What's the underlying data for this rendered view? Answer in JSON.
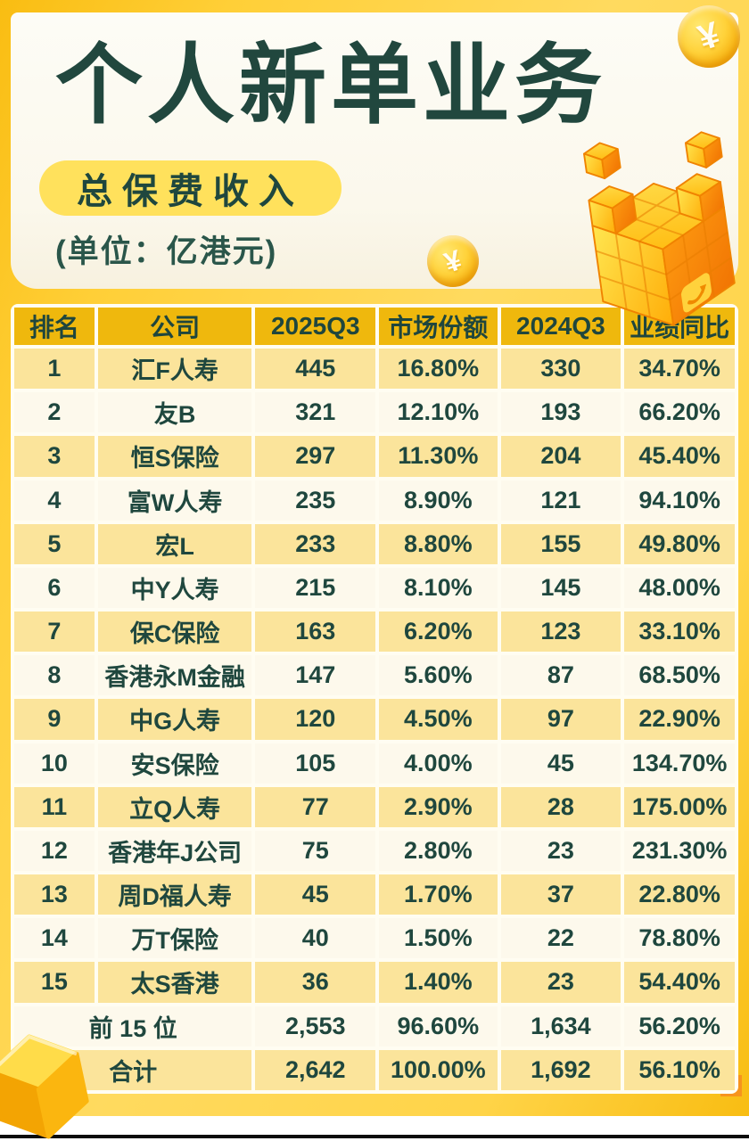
{
  "header": {
    "title": "个人新单业务",
    "badge": "总保费收入",
    "unit": "(单位：亿港元)"
  },
  "decor": {
    "coin_symbol": "¥"
  },
  "colors": {
    "ink": "#1F473E",
    "frame_gold": "#F9BE14",
    "frame_light": "#FFD95C",
    "header_cell_gold": "#EFB80D",
    "row_yellow": "#FBE49B",
    "row_cream": "#FDF9EC",
    "badge_yellow": "#FFE15C",
    "card_white": "#FFFDF2",
    "decor_orange": "#FF8E0D"
  },
  "table": {
    "columns": [
      "排名",
      "公司",
      "2025Q3",
      "市场份额",
      "2024Q3",
      "业绩同比"
    ],
    "rows": [
      [
        "1",
        "汇F人寿",
        "445",
        "16.80%",
        "330",
        "34.70%"
      ],
      [
        "2",
        "友B",
        "321",
        "12.10%",
        "193",
        "66.20%"
      ],
      [
        "3",
        "恒S保险",
        "297",
        "11.30%",
        "204",
        "45.40%"
      ],
      [
        "4",
        "富W人寿",
        "235",
        "8.90%",
        "121",
        "94.10%"
      ],
      [
        "5",
        "宏L",
        "233",
        "8.80%",
        "155",
        "49.80%"
      ],
      [
        "6",
        "中Y人寿",
        "215",
        "8.10%",
        "145",
        "48.00%"
      ],
      [
        "7",
        "保C保险",
        "163",
        "6.20%",
        "123",
        "33.10%"
      ],
      [
        "8",
        "香港永M金融",
        "147",
        "5.60%",
        "87",
        "68.50%"
      ],
      [
        "9",
        "中G人寿",
        "120",
        "4.50%",
        "97",
        "22.90%"
      ],
      [
        "10",
        "安S保险",
        "105",
        "4.00%",
        "45",
        "134.70%"
      ],
      [
        "11",
        "立Q人寿",
        "77",
        "2.90%",
        "28",
        "175.00%"
      ],
      [
        "12",
        "香港年J公司",
        "75",
        "2.80%",
        "23",
        "231.30%"
      ],
      [
        "13",
        "周D福人寿",
        "45",
        "1.70%",
        "37",
        "22.80%"
      ],
      [
        "14",
        "万T保险",
        "40",
        "1.50%",
        "22",
        "78.80%"
      ],
      [
        "15",
        "太S香港",
        "36",
        "1.40%",
        "23",
        "54.40%"
      ]
    ],
    "summary_rows": [
      {
        "label": "前 15 位",
        "values": [
          "2,553",
          "96.60%",
          "1,634",
          "56.20%"
        ]
      },
      {
        "label": "合计",
        "values": [
          "2,642",
          "100.00%",
          "1,692",
          "56.10%"
        ]
      }
    ]
  },
  "chart_data": {
    "type": "table",
    "title": "个人新单业务 — 总保费收入",
    "unit": "亿港元",
    "columns": [
      "排名",
      "公司",
      "2025Q3",
      "市场份额(%)",
      "2024Q3",
      "业绩同比(%)"
    ],
    "rows": [
      [
        1,
        "汇F人寿",
        445,
        16.8,
        330,
        34.7
      ],
      [
        2,
        "友B",
        321,
        12.1,
        193,
        66.2
      ],
      [
        3,
        "恒S保险",
        297,
        11.3,
        204,
        45.4
      ],
      [
        4,
        "富W人寿",
        235,
        8.9,
        121,
        94.1
      ],
      [
        5,
        "宏L",
        233,
        8.8,
        155,
        49.8
      ],
      [
        6,
        "中Y人寿",
        215,
        8.1,
        145,
        48.0
      ],
      [
        7,
        "保C保险",
        163,
        6.2,
        123,
        33.1
      ],
      [
        8,
        "香港永M金融",
        147,
        5.6,
        87,
        68.5
      ],
      [
        9,
        "中G人寿",
        120,
        4.5,
        97,
        22.9
      ],
      [
        10,
        "安S保险",
        105,
        4.0,
        45,
        134.7
      ],
      [
        11,
        "立Q人寿",
        77,
        2.9,
        28,
        175.0
      ],
      [
        12,
        "香港年J公司",
        75,
        2.8,
        23,
        231.3
      ],
      [
        13,
        "周D福人寿",
        45,
        1.7,
        37,
        22.8
      ],
      [
        14,
        "万T保险",
        40,
        1.5,
        22,
        78.8
      ],
      [
        15,
        "太S香港",
        36,
        1.4,
        23,
        54.4
      ]
    ],
    "summary": [
      [
        "前 15 位",
        2553,
        96.6,
        1634,
        56.2
      ],
      [
        "合计",
        2642,
        100.0,
        1692,
        56.1
      ]
    ]
  }
}
